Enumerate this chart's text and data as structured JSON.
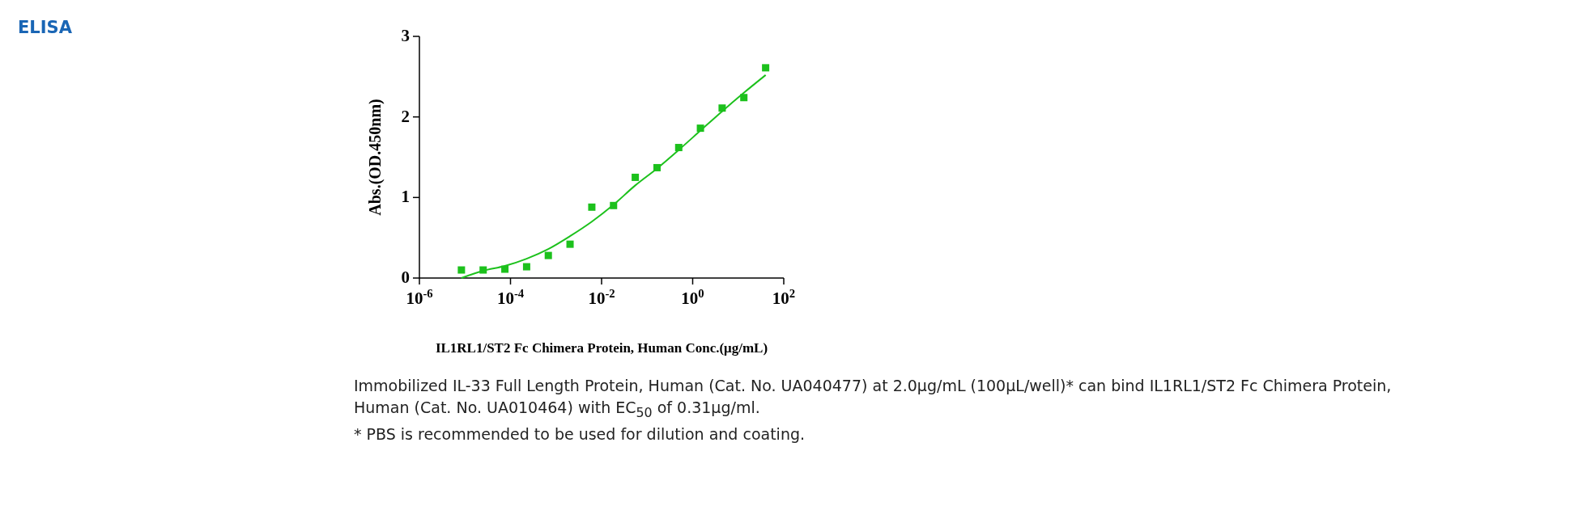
{
  "chart_data": {
    "type": "scatter",
    "title": "ELISA",
    "xlabel": "IL1RL1/ST2 Fc Chimera Protein, Human  Conc.(μg/mL)",
    "ylabel": "Abs.(OD.450nm)",
    "log": "x",
    "xlim": [
      1e-06,
      100
    ],
    "ylim": [
      0,
      3
    ],
    "xticks": [
      {
        "value": 1e-06,
        "label": "10$^{-6}$"
      },
      {
        "value": 0.0001,
        "label": "10$^{-4}$"
      },
      {
        "value": 0.01,
        "label": "10$^{-2}$"
      },
      {
        "value": 1,
        "label": "10$^{0}$"
      },
      {
        "value": 100,
        "label": "10$^{2}$"
      }
    ],
    "yticks": [
      0,
      1,
      2,
      3
    ],
    "grid": false,
    "series": [
      {
        "marker": "square",
        "color": "#1cc11c",
        "x": [
          8.36e-06,
          2.51e-05,
          7.53e-05,
          0.000226,
          0.000677,
          0.00203,
          0.0061,
          0.0183,
          0.0549,
          0.165,
          0.494,
          1.48,
          4.44,
          13.3,
          40
        ],
        "values": [
          0.1,
          0.1,
          0.11,
          0.14,
          0.28,
          0.42,
          0.88,
          0.9,
          1.25,
          1.37,
          1.62,
          1.86,
          2.11,
          2.24,
          2.61
        ]
      },
      {
        "type": "line",
        "marker": "none",
        "line_style": "solid",
        "color": "#1cc11c",
        "x": [
          8.36e-06,
          2.51e-05,
          7.53e-05,
          0.000226,
          0.000677,
          0.00203,
          0.0061,
          0.0183,
          0.0549,
          0.165,
          0.494,
          1.48,
          4.44,
          13.3,
          40
        ],
        "values": [
          0.0,
          0.09,
          0.15,
          0.24,
          0.36,
          0.52,
          0.7,
          0.91,
          1.15,
          1.36,
          1.59,
          1.83,
          2.07,
          2.3,
          2.52
        ]
      }
    ],
    "annotations": [
      "Immobilized IL-33 Full Length Protein, Human (Cat. No. UA040477) at 2.0μg/mL (100μL/well)* can bind IL1RL1/ST2 Fc Chimera Protein, Human (Cat. No. UA010464) with EC$_{50}$ of 0.31μg/ml.",
      "* PBS is recommended to be used for dilution and coating."
    ]
  }
}
